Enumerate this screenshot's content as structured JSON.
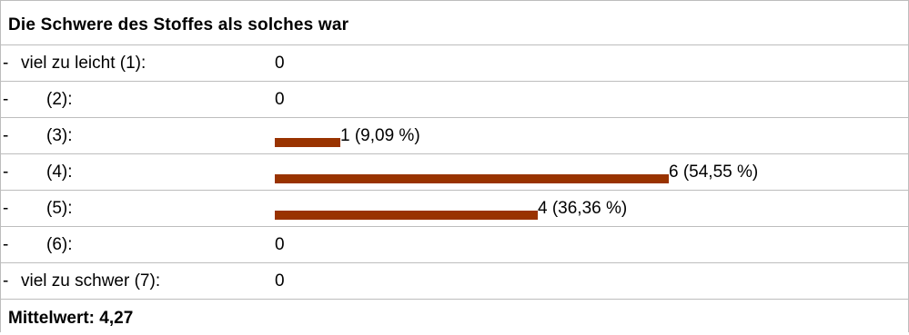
{
  "chart_data": {
    "type": "bar",
    "title": "Die Schwere des Stoffes als solches war",
    "categories": [
      "viel zu leicht (1):",
      "(2):",
      "(3):",
      "(4):",
      "(5):",
      "(6):",
      "viel zu schwer (7):"
    ],
    "values": [
      0,
      0,
      1,
      6,
      4,
      0,
      0
    ],
    "value_labels": [
      "0",
      "0",
      "1 (9,09 %)",
      "6 (54,55 %)",
      "4 (36,36 %)",
      "0",
      "0"
    ],
    "percentages": [
      0,
      0,
      9.09,
      54.55,
      36.36,
      0,
      0
    ],
    "orientation": "horizontal",
    "bar_color": "#993300",
    "grid": false
  },
  "summary": {
    "label": "Mittelwert: 4,27"
  },
  "colors": {
    "bar": "#993300",
    "border": "#bdbdbd",
    "text": "#000000"
  },
  "row_prefix": "-"
}
